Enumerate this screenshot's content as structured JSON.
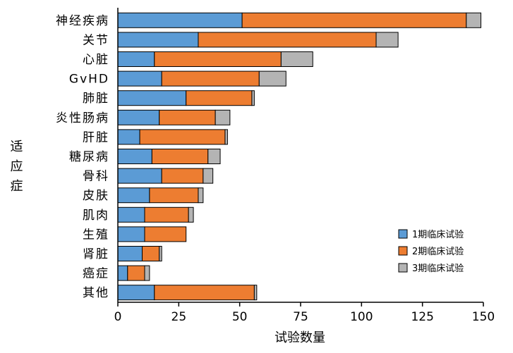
{
  "chart_data": {
    "type": "bar",
    "orientation": "horizontal",
    "stacked": true,
    "categories": [
      "神经疾病",
      "关节",
      "心脏",
      "GvHD",
      "肺脏",
      "炎性肠病",
      "肝脏",
      "糖尿病",
      "骨科",
      "皮肤",
      "肌肉",
      "生殖",
      "肾脏",
      "癌症",
      "其他"
    ],
    "series": [
      {
        "name": "1期临床试验",
        "color": "#5b9bd5",
        "values": [
          51,
          33,
          15,
          18,
          28,
          17,
          9,
          14,
          18,
          13,
          11,
          11,
          10,
          4,
          15
        ]
      },
      {
        "name": "2期临床试验",
        "color": "#ed7d31",
        "values": [
          92,
          73,
          52,
          40,
          27,
          23,
          35,
          23,
          17,
          20,
          18,
          17,
          7,
          7,
          41
        ]
      },
      {
        "name": "3期临床试验",
        "color": "#b4b4b4",
        "values": [
          6,
          9,
          13,
          11,
          1,
          6,
          1,
          5,
          4,
          2,
          2,
          0,
          1,
          2,
          1
        ]
      }
    ],
    "xlim": [
      0,
      150
    ],
    "xticks": [
      "0",
      "25",
      "50",
      "75",
      "100",
      "125",
      "150"
    ],
    "xlabel": "试验数量",
    "ylabel": "适应症",
    "legend_position": "bottom-right",
    "grid": false
  }
}
